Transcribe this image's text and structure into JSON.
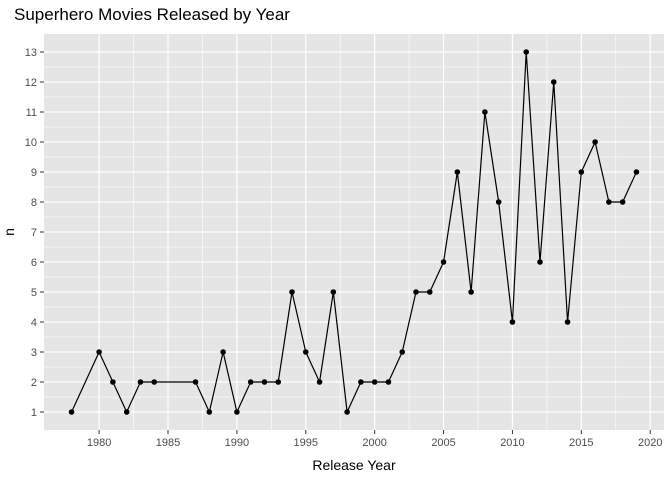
{
  "chart_data": {
    "type": "line",
    "title": "Superhero Movies Released by Year",
    "xlabel": "Release Year",
    "ylabel": "n",
    "xlim": [
      1976,
      2021
    ],
    "ylim": [
      0.4,
      13.6
    ],
    "x_ticks": [
      1980,
      1985,
      1990,
      1995,
      2000,
      2005,
      2010,
      2015,
      2020
    ],
    "y_ticks": [
      1,
      2,
      3,
      4,
      5,
      6,
      7,
      8,
      9,
      10,
      11,
      12,
      13
    ],
    "grid": true,
    "panel_background": "#e5e5e5",
    "grid_color": "#ffffff",
    "line_color": "#000000",
    "point_color": "#000000",
    "x": [
      1978,
      1980,
      1981,
      1982,
      1983,
      1984,
      1987,
      1988,
      1989,
      1990,
      1991,
      1992,
      1993,
      1994,
      1995,
      1996,
      1997,
      1998,
      1999,
      2000,
      2001,
      2002,
      2003,
      2004,
      2005,
      2006,
      2007,
      2008,
      2009,
      2010,
      2011,
      2012,
      2013,
      2014,
      2015,
      2016,
      2017,
      2018,
      2019
    ],
    "y": [
      1,
      3,
      2,
      1,
      2,
      2,
      2,
      1,
      3,
      1,
      2,
      2,
      2,
      5,
      3,
      2,
      5,
      1,
      2,
      2,
      2,
      3,
      5,
      5,
      6,
      9,
      5,
      11,
      8,
      4,
      13,
      6,
      12,
      4,
      9,
      10,
      8,
      8,
      9
    ]
  }
}
